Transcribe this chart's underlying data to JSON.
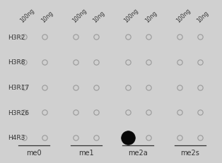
{
  "rows": [
    "H3R2",
    "H3R8",
    "H3R17",
    "H3R26",
    "H4R3"
  ],
  "groups": [
    "me0",
    "me1",
    "me2a",
    "me2s"
  ],
  "col_labels": [
    "100ng",
    "10ng",
    "100ng",
    "10ng",
    "100ng",
    "10ng",
    "100ng",
    "10ng"
  ],
  "filled_dot_row": 4,
  "filled_dot_col": 4,
  "background_color": "#d0d0d0",
  "empty_dot_facecolor": "#d0d0d0",
  "empty_dot_edgecolor": "#999999",
  "filled_dot_color": "#080808",
  "dot_size": 28,
  "filled_dot_size": 200,
  "row_label_fontsize": 6.5,
  "col_label_fontsize": 5.5,
  "group_label_fontsize": 7,
  "text_color": "#333333"
}
